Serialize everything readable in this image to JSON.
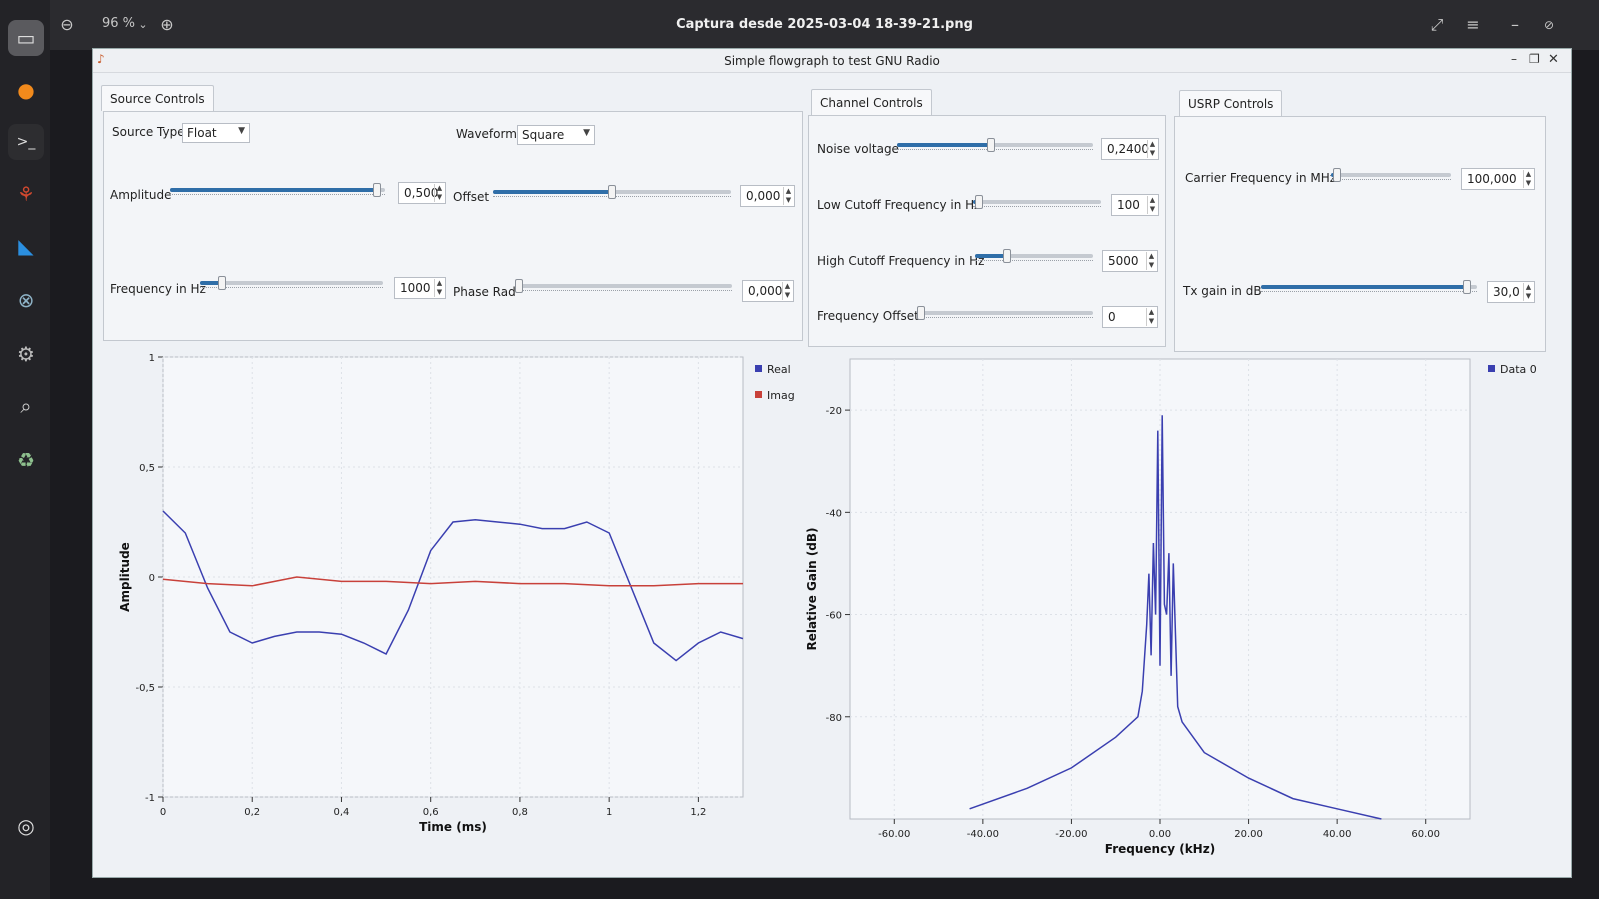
{
  "viewer": {
    "zoom": "96 %",
    "title": "Captura desde 2025-03-04 18-39-21.png"
  },
  "app": {
    "title": "Simple flowgraph to test GNU Radio"
  },
  "source_controls": {
    "tab": "Source Controls",
    "source_type_label": "Source Type:",
    "source_type_value": "Float",
    "waveform_label": "Waveform:",
    "waveform_value": "Square",
    "amplitude_label": "Amplitude",
    "amplitude_value": "0,500",
    "amplitude_level": 0.98,
    "offset_label": "Offset",
    "offset_value": "0,000",
    "offset_level": 0.5,
    "frequency_label": "Frequency in Hz",
    "frequency_value": "1000",
    "frequency_level": 0.1,
    "phase_label": "Phase Rad",
    "phase_value": "0,000",
    "phase_level": 0.0
  },
  "channel_controls": {
    "tab": "Channel Controls",
    "noise_label": "Noise voltage",
    "noise_value": "0,2400",
    "noise_level": 0.48,
    "low_cutoff_label": "Low Cutoff Frequency in Hz",
    "low_cutoff_value": "100",
    "low_cutoff_level": 0.02,
    "high_cutoff_label": "High Cutoff Frequency in Hz",
    "high_cutoff_value": "5000",
    "high_cutoff_level": 0.25,
    "freq_offset_label": "Frequency Offset",
    "freq_offset_value": "0",
    "freq_offset_level": 0.0
  },
  "usrp_controls": {
    "tab": "USRP Controls",
    "carrier_label": "Carrier Frequency in MHz",
    "carrier_value": "100,000",
    "carrier_level": 0.02,
    "txgain_label": "Tx gain in dB",
    "txgain_value": "30,0",
    "txgain_level": 0.97
  },
  "colors": {
    "real": "#3a3fb0",
    "imag": "#c8413a",
    "accent": "#2f6ea8"
  },
  "chart_data": [
    {
      "type": "line",
      "xlabel": "Time (ms)",
      "ylabel": "Amplitude",
      "xlim": [
        0,
        1.3
      ],
      "ylim": [
        -1,
        1
      ],
      "x_ticks": [
        "0",
        "0,2",
        "0,4",
        "0,6",
        "0,8",
        "1",
        "1,2"
      ],
      "y_ticks": [
        "1",
        "0,5",
        "0",
        "-0,5",
        "-1"
      ],
      "legend": "top-right",
      "series": [
        {
          "name": "Real",
          "x": [
            0,
            0.05,
            0.1,
            0.15,
            0.2,
            0.25,
            0.3,
            0.35,
            0.4,
            0.45,
            0.5,
            0.55,
            0.6,
            0.65,
            0.7,
            0.75,
            0.8,
            0.85,
            0.9,
            0.95,
            1.0,
            1.05,
            1.1,
            1.15,
            1.2,
            1.25,
            1.3
          ],
          "y": [
            0.3,
            0.2,
            -0.05,
            -0.25,
            -0.3,
            -0.27,
            -0.25,
            -0.25,
            -0.26,
            -0.3,
            -0.35,
            -0.15,
            0.12,
            0.25,
            0.26,
            0.25,
            0.24,
            0.22,
            0.22,
            0.25,
            0.2,
            -0.05,
            -0.3,
            -0.38,
            -0.3,
            -0.25,
            -0.28
          ]
        },
        {
          "name": "Imag",
          "x": [
            0,
            0.1,
            0.2,
            0.3,
            0.4,
            0.5,
            0.6,
            0.7,
            0.8,
            0.9,
            1.0,
            1.1,
            1.2,
            1.3
          ],
          "y": [
            -0.01,
            -0.03,
            -0.04,
            0.0,
            -0.02,
            -0.02,
            -0.03,
            -0.02,
            -0.03,
            -0.03,
            -0.04,
            -0.04,
            -0.03,
            -0.03
          ]
        }
      ]
    },
    {
      "type": "line",
      "xlabel": "Frequency (kHz)",
      "ylabel": "Relative Gain (dB)",
      "xlim": [
        -70,
        70
      ],
      "ylim": [
        -100,
        -10
      ],
      "x_ticks": [
        "-60.00",
        "-40.00",
        "-20.00",
        "0.00",
        "20.00",
        "40.00",
        "60.00"
      ],
      "y_ticks": [
        "-20",
        "-40",
        "-60",
        "-80"
      ],
      "legend": "top-right",
      "series": [
        {
          "name": "Data 0",
          "x": [
            -43,
            -30,
            -20,
            -10,
            -5,
            -4,
            -3,
            -2.5,
            -2,
            -1.5,
            -1,
            -0.5,
            0,
            0.5,
            1,
            1.5,
            2,
            2.5,
            3,
            4,
            5,
            10,
            20,
            30,
            40,
            50
          ],
          "y": [
            -98,
            -94,
            -90,
            -84,
            -80,
            -75,
            -62,
            -52,
            -68,
            -46,
            -60,
            -24,
            -70,
            -21,
            -58,
            -60,
            -48,
            -72,
            -50,
            -78,
            -81,
            -87,
            -92,
            -96,
            -98,
            -100
          ]
        }
      ]
    }
  ]
}
